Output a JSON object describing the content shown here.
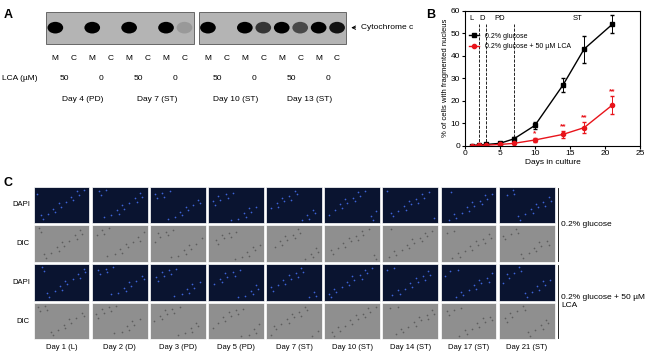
{
  "chart_data": {
    "type": "line",
    "panel_label": "B",
    "x_label": "Days in culture",
    "y_label": "% of cells with fragmented nucleus",
    "xlim": [
      0,
      25
    ],
    "xticks": [
      0,
      5,
      10,
      15,
      20,
      25
    ],
    "ylim": [
      0,
      60
    ],
    "yticks": [
      0,
      10,
      20,
      30,
      40,
      50,
      60
    ],
    "legend": "upper left",
    "phases": [
      {
        "label": "L",
        "start": 0,
        "end": 2
      },
      {
        "label": "D",
        "start": 2,
        "end": 3
      },
      {
        "label": "PD",
        "start": 3,
        "end": 7
      },
      {
        "label": "ST",
        "start": 7,
        "end": 25
      }
    ],
    "x": [
      1,
      2,
      3,
      5,
      7,
      10,
      14,
      17,
      21
    ],
    "series": [
      {
        "name": "0.2% glucose",
        "color": "#000000",
        "marker": "square",
        "values": [
          0,
          0.3,
          0.5,
          1,
          3,
          9,
          27,
          43,
          54
        ],
        "errors": [
          0,
          0.2,
          0.3,
          0.5,
          1,
          1.5,
          3,
          6,
          4
        ]
      },
      {
        "name": "0.2% glucose + 50 µM LCA",
        "color": "#e8141b",
        "marker": "circle",
        "values": [
          0,
          0.1,
          0.2,
          0.5,
          1,
          2.5,
          5,
          8,
          18
        ],
        "errors": [
          0,
          0,
          0.1,
          0.2,
          0.5,
          1,
          1.5,
          2.5,
          4
        ],
        "significance": [
          null,
          null,
          null,
          null,
          null,
          "*",
          "**",
          "**",
          "**"
        ]
      }
    ]
  },
  "panel_a": {
    "panel_label": "A",
    "protein": "Cytochrome c",
    "row_label": "LCA (µM)",
    "fractions": [
      "M",
      "C"
    ],
    "days": [
      {
        "label": "Day 4 (PD)",
        "conditions": [
          {
            "lca": 50,
            "bands": [
              1.0,
              0.0
            ]
          },
          {
            "lca": 0,
            "bands": [
              1.0,
              0.0
            ]
          }
        ]
      },
      {
        "label": "Day 7 (ST)",
        "conditions": [
          {
            "lca": 50,
            "bands": [
              1.0,
              0.0
            ]
          },
          {
            "lca": 0,
            "bands": [
              1.0,
              0.15
            ]
          }
        ]
      },
      {
        "label": "Day 10 (ST)",
        "conditions": [
          {
            "lca": 50,
            "bands": [
              1.0,
              0.0
            ]
          },
          {
            "lca": 0,
            "bands": [
              1.0,
              0.7
            ]
          }
        ]
      },
      {
        "label": "Day 13 (ST)",
        "conditions": [
          {
            "lca": 50,
            "bands": [
              1.0,
              0.6
            ]
          },
          {
            "lca": 0,
            "bands": [
              1.0,
              0.9
            ]
          }
        ]
      }
    ]
  },
  "panel_c": {
    "panel_label": "C",
    "conditions": [
      {
        "name": "0.2% glucose",
        "channels": [
          "DAPI",
          "DIC"
        ]
      },
      {
        "name": "0.2% glucose + 50 µM LCA",
        "channels": [
          "DAPI",
          "DIC"
        ]
      }
    ],
    "days": [
      "Day 1 (L)",
      "Day 2 (D)",
      "Day 3 (PD)",
      "Day 5 (PD)",
      "Day 7 (ST)",
      "Day 10 (ST)",
      "Day 14 (ST)",
      "Day 17 (ST)",
      "Day 21 (ST)"
    ]
  }
}
